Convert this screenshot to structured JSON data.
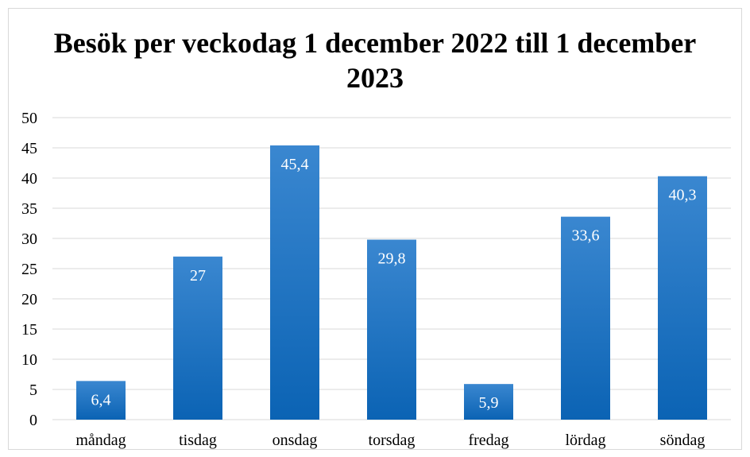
{
  "chart_data": {
    "type": "bar",
    "title": "Besök per veckodag 1 december 2022 till 1 december 2023",
    "xlabel": "",
    "ylabel": "",
    "categories": [
      "måndag",
      "tisdag",
      "onsdag",
      "torsdag",
      "fredag",
      "lördag",
      "söndag"
    ],
    "values": [
      6.4,
      27,
      45.4,
      29.8,
      5.9,
      33.6,
      40.3
    ],
    "data_labels": [
      "6,4",
      "27",
      "45,4",
      "29,8",
      "5,9",
      "33,6",
      "40,3"
    ],
    "ylim": [
      0,
      50
    ],
    "yticks": [
      "0",
      "5",
      "10",
      "15",
      "20",
      "25",
      "30",
      "35",
      "40",
      "45",
      "50"
    ],
    "grid": true,
    "legend": "none",
    "colors": {
      "bar_top": "#3a87d0",
      "bar_bottom": "#0b63b4",
      "grid": "#d9d9d9",
      "data_label": "#ffffff"
    }
  }
}
